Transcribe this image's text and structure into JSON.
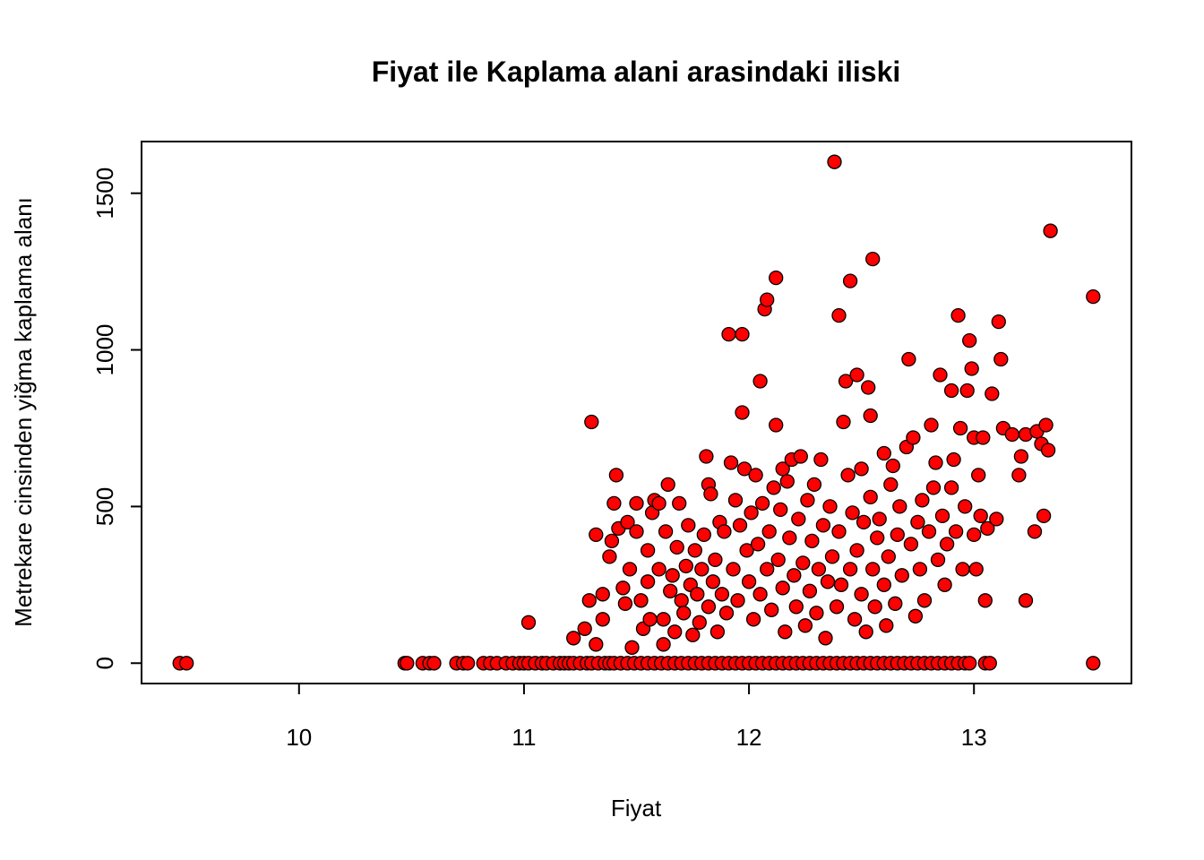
{
  "chart_data": {
    "type": "scatter",
    "title": "Fiyat ile Kaplama alani arasindaki iliski",
    "xlabel": "Fiyat",
    "ylabel": "Metrekare cinsinden yiğma kaplama alanı",
    "xlim": [
      9.3,
      13.7
    ],
    "ylim": [
      -65,
      1665
    ],
    "xticks": [
      10,
      11,
      12,
      13
    ],
    "yticks": [
      0,
      500,
      1000,
      1500
    ],
    "grid": false,
    "legend": "none",
    "marker_fill": "#FF0000",
    "marker_edge": "#000000",
    "series": [
      {
        "points": [
          [
            9.47,
            0
          ],
          [
            9.5,
            0
          ],
          [
            10.47,
            0
          ],
          [
            10.48,
            0
          ],
          [
            10.55,
            0
          ],
          [
            10.58,
            0
          ],
          [
            10.6,
            0
          ],
          [
            10.7,
            0
          ],
          [
            10.73,
            0
          ],
          [
            10.75,
            0
          ],
          [
            10.82,
            0
          ],
          [
            10.85,
            0
          ],
          [
            10.88,
            0
          ],
          [
            10.92,
            0
          ],
          [
            10.95,
            0
          ],
          [
            10.98,
            0
          ],
          [
            11.0,
            0
          ],
          [
            11.02,
            0
          ],
          [
            11.05,
            0
          ],
          [
            11.08,
            0
          ],
          [
            11.1,
            0
          ],
          [
            11.13,
            0
          ],
          [
            11.16,
            0
          ],
          [
            11.18,
            0
          ],
          [
            11.2,
            0
          ],
          [
            11.22,
            0
          ],
          [
            11.25,
            0
          ],
          [
            11.28,
            0
          ],
          [
            11.3,
            0
          ],
          [
            11.33,
            0
          ],
          [
            11.36,
            0
          ],
          [
            11.38,
            0
          ],
          [
            11.4,
            0
          ],
          [
            11.43,
            0
          ],
          [
            11.46,
            0
          ],
          [
            11.49,
            0
          ],
          [
            11.52,
            0
          ],
          [
            11.55,
            0
          ],
          [
            11.58,
            0
          ],
          [
            11.61,
            0
          ],
          [
            11.64,
            0
          ],
          [
            11.67,
            0
          ],
          [
            11.7,
            0
          ],
          [
            11.73,
            0
          ],
          [
            11.76,
            0
          ],
          [
            11.79,
            0
          ],
          [
            11.82,
            0
          ],
          [
            11.85,
            0
          ],
          [
            11.88,
            0
          ],
          [
            11.91,
            0
          ],
          [
            11.94,
            0
          ],
          [
            11.97,
            0
          ],
          [
            12.0,
            0
          ],
          [
            12.03,
            0
          ],
          [
            12.06,
            0
          ],
          [
            12.09,
            0
          ],
          [
            12.12,
            0
          ],
          [
            12.15,
            0
          ],
          [
            12.18,
            0
          ],
          [
            12.21,
            0
          ],
          [
            12.24,
            0
          ],
          [
            12.27,
            0
          ],
          [
            12.3,
            0
          ],
          [
            12.33,
            0
          ],
          [
            12.36,
            0
          ],
          [
            12.39,
            0
          ],
          [
            12.42,
            0
          ],
          [
            12.45,
            0
          ],
          [
            12.48,
            0
          ],
          [
            12.51,
            0
          ],
          [
            12.54,
            0
          ],
          [
            12.57,
            0
          ],
          [
            12.6,
            0
          ],
          [
            12.63,
            0
          ],
          [
            12.66,
            0
          ],
          [
            12.69,
            0
          ],
          [
            12.72,
            0
          ],
          [
            12.75,
            0
          ],
          [
            12.78,
            0
          ],
          [
            12.81,
            0
          ],
          [
            12.84,
            0
          ],
          [
            12.87,
            0
          ],
          [
            12.9,
            0
          ],
          [
            12.93,
            0
          ],
          [
            12.96,
            0
          ],
          [
            12.98,
            0
          ],
          [
            13.05,
            0
          ],
          [
            13.07,
            0
          ],
          [
            13.53,
            0
          ],
          [
            11.02,
            130
          ],
          [
            11.22,
            80
          ],
          [
            11.27,
            110
          ],
          [
            11.29,
            200
          ],
          [
            11.3,
            770
          ],
          [
            11.32,
            410
          ],
          [
            11.32,
            60
          ],
          [
            11.35,
            220
          ],
          [
            11.35,
            140
          ],
          [
            11.38,
            340
          ],
          [
            11.39,
            390
          ],
          [
            11.4,
            510
          ],
          [
            11.41,
            600
          ],
          [
            11.42,
            430
          ],
          [
            11.44,
            240
          ],
          [
            11.45,
            190
          ],
          [
            11.46,
            450
          ],
          [
            11.47,
            300
          ],
          [
            11.48,
            50
          ],
          [
            11.5,
            510
          ],
          [
            11.5,
            420
          ],
          [
            11.52,
            200
          ],
          [
            11.53,
            110
          ],
          [
            11.55,
            260
          ],
          [
            11.55,
            360
          ],
          [
            11.56,
            140
          ],
          [
            11.57,
            480
          ],
          [
            11.58,
            520
          ],
          [
            11.6,
            510
          ],
          [
            11.6,
            300
          ],
          [
            11.62,
            140
          ],
          [
            11.62,
            60
          ],
          [
            11.63,
            420
          ],
          [
            11.64,
            570
          ],
          [
            11.65,
            230
          ],
          [
            11.66,
            280
          ],
          [
            11.67,
            100
          ],
          [
            11.68,
            370
          ],
          [
            11.69,
            510
          ],
          [
            11.7,
            200
          ],
          [
            11.71,
            160
          ],
          [
            11.72,
            310
          ],
          [
            11.73,
            440
          ],
          [
            11.74,
            250
          ],
          [
            11.75,
            90
          ],
          [
            11.76,
            360
          ],
          [
            11.77,
            220
          ],
          [
            11.78,
            130
          ],
          [
            11.79,
            300
          ],
          [
            11.8,
            410
          ],
          [
            11.81,
            660
          ],
          [
            11.82,
            570
          ],
          [
            11.82,
            180
          ],
          [
            11.83,
            540
          ],
          [
            11.84,
            260
          ],
          [
            11.85,
            330
          ],
          [
            11.86,
            100
          ],
          [
            11.87,
            450
          ],
          [
            11.88,
            220
          ],
          [
            11.89,
            420
          ],
          [
            11.9,
            160
          ],
          [
            11.91,
            1050
          ],
          [
            11.92,
            640
          ],
          [
            11.93,
            300
          ],
          [
            11.94,
            520
          ],
          [
            11.95,
            200
          ],
          [
            11.96,
            440
          ],
          [
            11.97,
            800
          ],
          [
            11.97,
            1050
          ],
          [
            11.98,
            620
          ],
          [
            11.99,
            360
          ],
          [
            12.0,
            260
          ],
          [
            12.01,
            480
          ],
          [
            12.02,
            140
          ],
          [
            12.03,
            600
          ],
          [
            12.04,
            380
          ],
          [
            12.05,
            900
          ],
          [
            12.05,
            220
          ],
          [
            12.06,
            510
          ],
          [
            12.07,
            1130
          ],
          [
            12.08,
            1160
          ],
          [
            12.08,
            300
          ],
          [
            12.09,
            420
          ],
          [
            12.1,
            170
          ],
          [
            12.11,
            560
          ],
          [
            12.12,
            1230
          ],
          [
            12.12,
            760
          ],
          [
            12.13,
            330
          ],
          [
            12.14,
            490
          ],
          [
            12.15,
            620
          ],
          [
            12.15,
            240
          ],
          [
            12.16,
            100
          ],
          [
            12.17,
            580
          ],
          [
            12.18,
            400
          ],
          [
            12.19,
            650
          ],
          [
            12.2,
            280
          ],
          [
            12.21,
            180
          ],
          [
            12.22,
            460
          ],
          [
            12.23,
            660
          ],
          [
            12.24,
            320
          ],
          [
            12.25,
            120
          ],
          [
            12.26,
            520
          ],
          [
            12.27,
            230
          ],
          [
            12.28,
            390
          ],
          [
            12.29,
            570
          ],
          [
            12.3,
            160
          ],
          [
            12.31,
            300
          ],
          [
            12.32,
            650
          ],
          [
            12.33,
            440
          ],
          [
            12.34,
            80
          ],
          [
            12.35,
            260
          ],
          [
            12.36,
            500
          ],
          [
            12.37,
            340
          ],
          [
            12.38,
            1600
          ],
          [
            12.39,
            180
          ],
          [
            12.4,
            1110
          ],
          [
            12.4,
            420
          ],
          [
            12.41,
            250
          ],
          [
            12.42,
            770
          ],
          [
            12.43,
            900
          ],
          [
            12.44,
            600
          ],
          [
            12.45,
            1220
          ],
          [
            12.45,
            300
          ],
          [
            12.46,
            480
          ],
          [
            12.47,
            140
          ],
          [
            12.48,
            920
          ],
          [
            12.48,
            360
          ],
          [
            12.5,
            620
          ],
          [
            12.5,
            220
          ],
          [
            12.51,
            450
          ],
          [
            12.52,
            100
          ],
          [
            12.53,
            880
          ],
          [
            12.54,
            790
          ],
          [
            12.54,
            530
          ],
          [
            12.55,
            1290
          ],
          [
            12.55,
            300
          ],
          [
            12.56,
            180
          ],
          [
            12.57,
            400
          ],
          [
            12.58,
            460
          ],
          [
            12.6,
            670
          ],
          [
            12.6,
            250
          ],
          [
            12.61,
            120
          ],
          [
            12.62,
            340
          ],
          [
            12.63,
            570
          ],
          [
            12.64,
            630
          ],
          [
            12.65,
            190
          ],
          [
            12.66,
            410
          ],
          [
            12.67,
            500
          ],
          [
            12.68,
            280
          ],
          [
            12.7,
            690
          ],
          [
            12.71,
            970
          ],
          [
            12.72,
            380
          ],
          [
            12.73,
            720
          ],
          [
            12.74,
            150
          ],
          [
            12.75,
            450
          ],
          [
            12.76,
            300
          ],
          [
            12.77,
            520
          ],
          [
            12.78,
            200
          ],
          [
            12.8,
            420
          ],
          [
            12.81,
            760
          ],
          [
            12.82,
            560
          ],
          [
            12.83,
            640
          ],
          [
            12.84,
            330
          ],
          [
            12.85,
            920
          ],
          [
            12.86,
            470
          ],
          [
            12.87,
            250
          ],
          [
            12.88,
            380
          ],
          [
            12.9,
            870
          ],
          [
            12.9,
            560
          ],
          [
            12.91,
            650
          ],
          [
            12.92,
            420
          ],
          [
            12.93,
            1110
          ],
          [
            12.94,
            750
          ],
          [
            12.95,
            300
          ],
          [
            12.96,
            500
          ],
          [
            12.97,
            870
          ],
          [
            12.98,
            1030
          ],
          [
            12.99,
            940
          ],
          [
            13.0,
            720
          ],
          [
            13.0,
            410
          ],
          [
            13.01,
            300
          ],
          [
            13.02,
            600
          ],
          [
            13.03,
            470
          ],
          [
            13.04,
            720
          ],
          [
            13.05,
            200
          ],
          [
            13.06,
            430
          ],
          [
            13.08,
            860
          ],
          [
            13.1,
            460
          ],
          [
            13.11,
            1090
          ],
          [
            13.12,
            970
          ],
          [
            13.13,
            750
          ],
          [
            13.17,
            730
          ],
          [
            13.2,
            600
          ],
          [
            13.21,
            660
          ],
          [
            13.23,
            730
          ],
          [
            13.23,
            200
          ],
          [
            13.27,
            420
          ],
          [
            13.28,
            740
          ],
          [
            13.3,
            700
          ],
          [
            13.31,
            470
          ],
          [
            13.32,
            760
          ],
          [
            13.33,
            680
          ],
          [
            13.34,
            1380
          ],
          [
            13.53,
            1170
          ]
        ]
      }
    ]
  }
}
